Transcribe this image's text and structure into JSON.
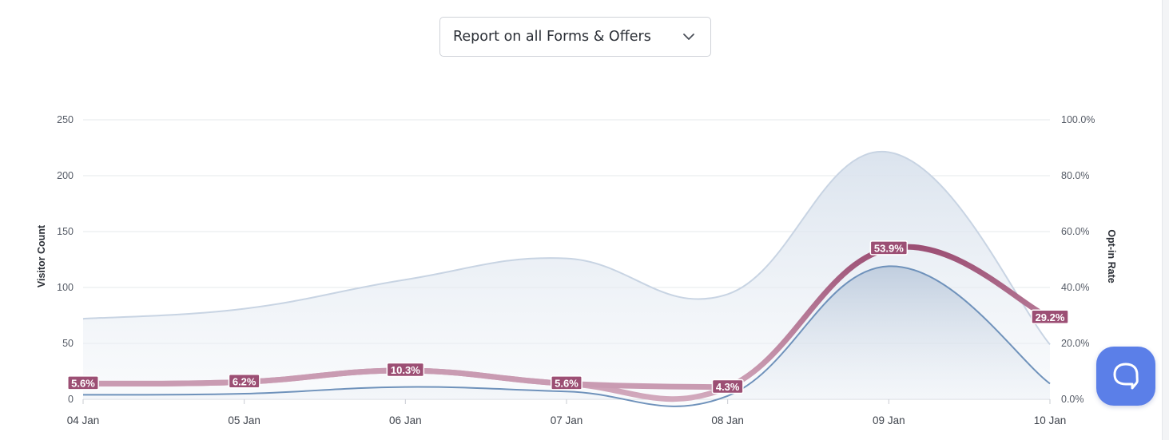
{
  "report_select": {
    "label": "Report on all Forms & Offers"
  },
  "chat_button": {
    "icon": "chat-bubble-icon",
    "color": "#5b7fe8"
  },
  "chart_data": {
    "type": "line",
    "categories": [
      "04 Jan",
      "05 Jan",
      "06 Jan",
      "07 Jan",
      "08 Jan",
      "09 Jan",
      "10 Jan"
    ],
    "y_left": {
      "label": "Visitor Count",
      "ticks": [
        "0",
        "50",
        "100",
        "150",
        "200",
        "250"
      ],
      "range": [
        0,
        250
      ]
    },
    "y_right": {
      "label": "Opt-in Rate",
      "ticks": [
        "0.0%",
        "20.0%",
        "40.0%",
        "60.0%",
        "80.0%",
        "100.0%"
      ],
      "range": [
        0,
        100
      ]
    },
    "grid": true,
    "series": [
      {
        "axis": "left",
        "style": "area",
        "color": "#c8d4e3",
        "values": [
          72,
          81,
          107,
          126,
          94,
          221,
          49
        ]
      },
      {
        "axis": "left",
        "style": "area",
        "color": "#6f92bb",
        "values": [
          4,
          5,
          11,
          7,
          3,
          119,
          14
        ]
      },
      {
        "axis": "right",
        "style": "line",
        "color": "#9c4f74",
        "values": [
          5.6,
          6.2,
          10.3,
          5.6,
          4.3,
          53.9,
          29.2
        ],
        "labels": [
          "5.6%",
          "6.2%",
          "10.3%",
          "5.6%",
          "4.3%",
          "53.9%",
          "29.2%"
        ]
      }
    ]
  }
}
